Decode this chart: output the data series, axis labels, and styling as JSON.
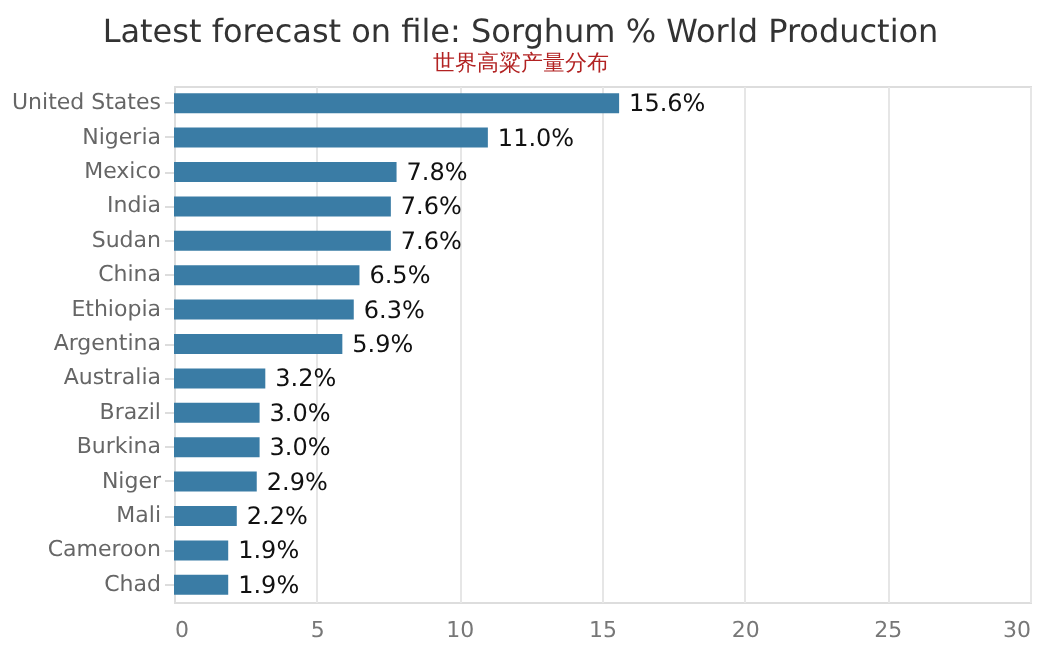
{
  "chart_data": {
    "type": "bar",
    "orientation": "horizontal",
    "title": "Latest forecast on file: Sorghum % World Production",
    "subtitle": "世界高粱产量分布",
    "categories": [
      "United States",
      "Nigeria",
      "Mexico",
      "India",
      "Sudan",
      "China",
      "Ethiopia",
      "Argentina",
      "Australia",
      "Brazil",
      "Burkina",
      "Niger",
      "Mali",
      "Cameroon",
      "Chad"
    ],
    "values": [
      15.6,
      11.0,
      7.8,
      7.6,
      7.6,
      6.5,
      6.3,
      5.9,
      3.2,
      3.0,
      3.0,
      2.9,
      2.2,
      1.9,
      1.9
    ],
    "value_labels": [
      "15.6%",
      "11.0%",
      "7.8%",
      "7.6%",
      "7.6%",
      "6.5%",
      "6.3%",
      "5.9%",
      "3.2%",
      "3.0%",
      "3.0%",
      "2.9%",
      "2.2%",
      "1.9%",
      "1.9%"
    ],
    "color": "#3a7ca5",
    "xlim": [
      0,
      30
    ],
    "xticks": [
      0,
      5,
      10,
      15,
      20,
      25,
      30
    ],
    "grid": "x"
  }
}
